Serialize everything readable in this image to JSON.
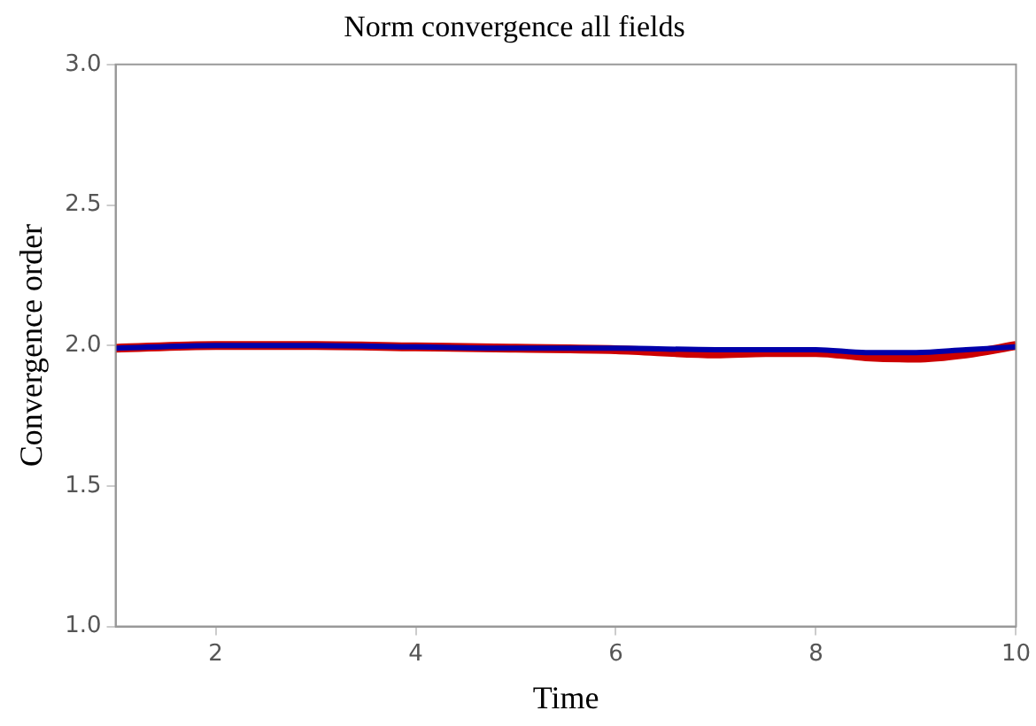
{
  "chart_data": {
    "type": "line",
    "title": "Norm convergence all fields",
    "xlabel": "Time",
    "ylabel": "Convergence order",
    "xlim": [
      1,
      10
    ],
    "xticks": [
      2,
      4,
      6,
      8,
      10
    ],
    "ylim": [
      1,
      3
    ],
    "yticks": [
      {
        "value": 1,
        "label": "1.0"
      },
      {
        "value": 1.5,
        "label": "1.5"
      },
      {
        "value": 2,
        "label": "2.0"
      },
      {
        "value": 2.5,
        "label": "2.5"
      },
      {
        "value": 3,
        "label": "3.0"
      }
    ],
    "grid": false,
    "legend": false,
    "marker": "none",
    "line_style": "solid",
    "series": [
      {
        "color": "#cc0000",
        "x": [
          1,
          2,
          3,
          4,
          5,
          6,
          7,
          7.5,
          8,
          8.5,
          9,
          9.5,
          10
        ],
        "values": [
          1.99,
          2.0,
          2.0,
          1.995,
          1.99,
          1.985,
          1.97,
          1.975,
          1.975,
          1.96,
          1.955,
          1.97,
          2.0
        ]
      },
      {
        "color": "#0000aa",
        "x": [
          1,
          2,
          3,
          4,
          5,
          6,
          7,
          7.5,
          8,
          8.5,
          9,
          9.5,
          10
        ],
        "values": [
          1.99,
          2.0,
          2.0,
          1.995,
          1.99,
          1.99,
          1.985,
          1.985,
          1.985,
          1.975,
          1.975,
          1.985,
          1.995
        ]
      }
    ]
  }
}
